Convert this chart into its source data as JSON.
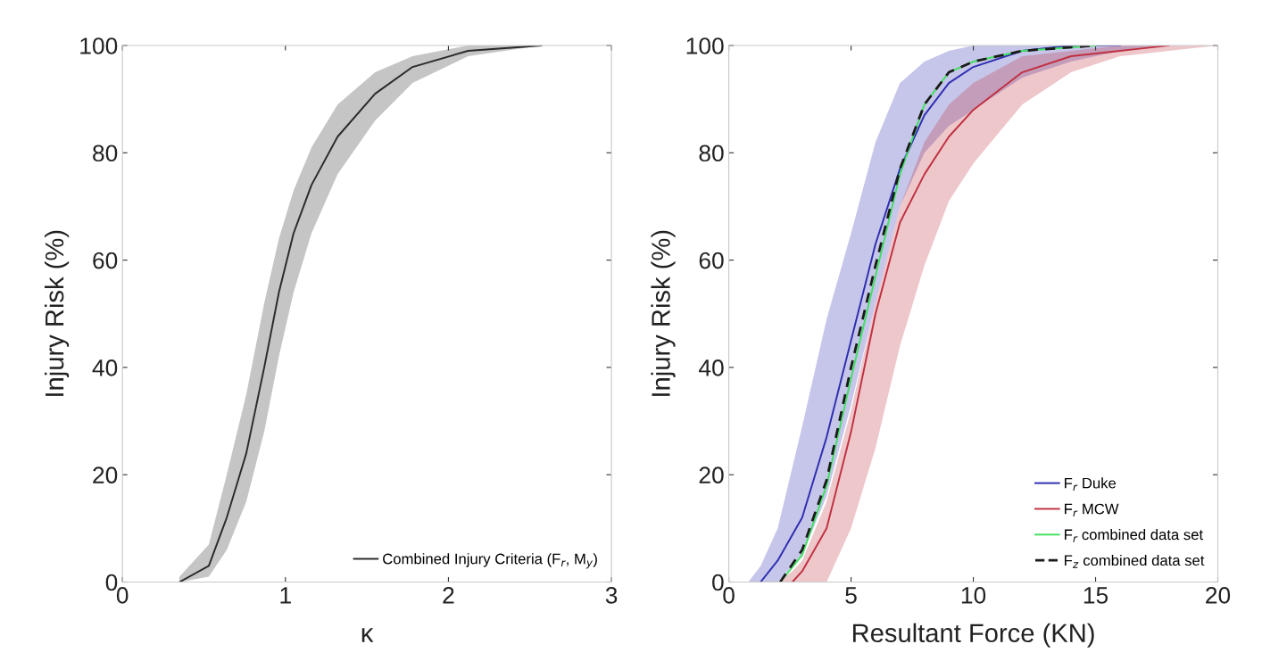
{
  "chart_data": [
    {
      "type": "line",
      "xlabel": "κ",
      "ylabel": "Injury Risk (%)",
      "xlim": [
        0,
        3
      ],
      "xticks": [
        0,
        1,
        2,
        3
      ],
      "ylim": [
        0,
        100
      ],
      "yticks": [
        0,
        20,
        40,
        60,
        80,
        100
      ],
      "grid": false,
      "legend": "bottom right",
      "marker": "none",
      "series": [
        {
          "name": "Combined Injury Criteria (F$_{r}$, M$_{y}$)",
          "color": "#2a2a2a",
          "line_style": "solid",
          "x": [
            0.35,
            0.53,
            0.64,
            0.76,
            0.87,
            0.96,
            1.05,
            1.16,
            1.32,
            1.55,
            1.78,
            2.12,
            2.57
          ],
          "values": [
            0,
            3,
            12,
            24,
            40,
            54,
            65,
            74,
            83,
            91,
            96,
            99,
            100
          ],
          "upper": [
            1,
            7,
            20,
            35,
            52,
            64,
            73,
            81,
            89,
            95,
            98,
            100,
            100
          ],
          "lower": [
            0,
            1,
            6,
            15,
            28,
            42,
            54,
            65,
            76,
            86,
            93,
            98,
            100
          ]
        }
      ]
    },
    {
      "type": "line",
      "xlabel": "Resultant Force (KN)",
      "ylabel": "Injury Risk (%)",
      "xlim": [
        0,
        20
      ],
      "xticks": [
        0,
        5,
        10,
        15,
        20
      ],
      "ylim": [
        0,
        100
      ],
      "yticks": [
        0,
        20,
        40,
        60,
        80,
        100
      ],
      "grid": false,
      "legend": "bottom right",
      "marker": "none",
      "series": [
        {
          "name": "F$_{r}$ Duke",
          "color": "#2d2db0",
          "line_style": "solid",
          "x": [
            0.8,
            1.3,
            2,
            3,
            4,
            5,
            6,
            7,
            8,
            9,
            10,
            12,
            14,
            16,
            18,
            20
          ],
          "values": [
            null,
            0,
            4,
            12,
            27,
            45,
            63,
            77,
            87,
            93,
            96,
            99,
            100,
            100,
            null,
            null
          ],
          "upper": [
            0,
            3,
            10,
            29,
            49,
            65,
            82,
            93,
            97,
            99,
            100,
            100,
            100,
            100,
            100,
            100
          ],
          "lower": [
            0,
            0,
            0,
            5,
            16,
            33,
            52,
            70,
            80,
            85,
            88,
            94,
            97,
            99,
            100,
            100
          ]
        },
        {
          "name": "F$_{r}$ MCW",
          "color": "#c03040",
          "line_style": "solid",
          "x": [
            2,
            2.6,
            3,
            4,
            5,
            6,
            7,
            8,
            9,
            10,
            12,
            14,
            16,
            18,
            20
          ],
          "values": [
            null,
            0,
            2,
            10,
            28,
            50,
            67,
            76,
            83,
            88,
            95,
            98,
            99,
            100,
            null
          ],
          "upper": [
            0,
            2,
            4,
            15,
            32,
            52,
            70,
            82,
            89,
            93,
            98,
            99,
            100,
            100,
            100
          ],
          "lower": [
            0,
            0,
            0,
            0,
            10,
            25,
            44,
            59,
            71,
            78,
            89,
            95,
            98,
            99,
            100
          ]
        },
        {
          "name": "F$_{r}$ combined data set",
          "color": "#40e060",
          "line_style": "solid",
          "x": [
            2.1,
            3,
            4,
            5,
            6,
            7,
            8,
            9,
            10,
            12,
            15
          ],
          "values": [
            0,
            5,
            18,
            38,
            57,
            76,
            89,
            95,
            97,
            99,
            100
          ]
        },
        {
          "name": "F$_{z}$ combined data set",
          "color": "#1a1a1a",
          "line_style": "dashed",
          "x": [
            2.1,
            3,
            4,
            5,
            6,
            7,
            8,
            9,
            10,
            12,
            15
          ],
          "values": [
            0,
            6,
            19,
            40,
            59,
            77,
            89,
            95,
            97,
            99,
            100
          ]
        }
      ]
    }
  ]
}
